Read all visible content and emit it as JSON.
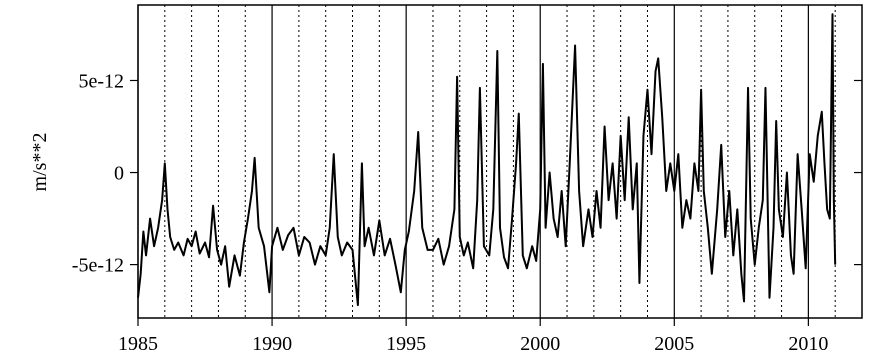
{
  "chart_data": {
    "type": "line",
    "y_label": "m/s**2",
    "color": "#000000",
    "xlim": [
      1985,
      2012
    ],
    "ylim": [
      -7.9e-12,
      9.1e-12
    ],
    "xticks": [
      1985,
      1990,
      1995,
      2000,
      2005,
      2010
    ],
    "yticks": [
      -5e-12,
      0,
      5e-12
    ],
    "x_minor_grid": [
      1986,
      1987,
      1988,
      1989,
      1991,
      1992,
      1993,
      1994,
      1996,
      1997,
      1998,
      1999,
      2001,
      2002,
      2003,
      2004,
      2006,
      2007,
      2008,
      2009,
      2011
    ],
    "grid": true,
    "x": [
      1985.0,
      1985.1,
      1985.2,
      1985.3,
      1985.45,
      1985.6,
      1985.75,
      1985.9,
      1986.0,
      1986.1,
      1986.2,
      1986.35,
      1986.5,
      1986.7,
      1986.85,
      1987.0,
      1987.15,
      1987.3,
      1987.5,
      1987.65,
      1987.8,
      1987.95,
      1988.1,
      1988.25,
      1988.4,
      1988.6,
      1988.8,
      1988.95,
      1989.1,
      1989.25,
      1989.35,
      1989.5,
      1989.7,
      1989.9,
      1990.0,
      1990.2,
      1990.4,
      1990.6,
      1990.8,
      1991.0,
      1991.2,
      1991.4,
      1991.6,
      1991.8,
      1992.0,
      1992.15,
      1992.3,
      1992.45,
      1992.6,
      1992.8,
      1993.0,
      1993.2,
      1993.35,
      1993.45,
      1993.6,
      1993.8,
      1994.0,
      1994.2,
      1994.4,
      1994.6,
      1994.8,
      1994.95,
      1995.1,
      1995.3,
      1995.45,
      1995.6,
      1995.8,
      1996.0,
      1996.2,
      1996.4,
      1996.6,
      1996.8,
      1996.9,
      1997.0,
      1997.15,
      1997.3,
      1997.5,
      1997.65,
      1997.75,
      1997.9,
      1998.1,
      1998.25,
      1998.4,
      1998.5,
      1998.65,
      1998.8,
      1998.95,
      1999.1,
      1999.2,
      1999.35,
      1999.5,
      1999.7,
      1999.85,
      2000.0,
      2000.1,
      2000.2,
      2000.35,
      2000.5,
      2000.65,
      2000.8,
      2000.95,
      2001.1,
      2001.3,
      2001.45,
      2001.6,
      2001.8,
      2001.95,
      2002.1,
      2002.25,
      2002.4,
      2002.55,
      2002.7,
      2002.85,
      2003.0,
      2003.15,
      2003.3,
      2003.45,
      2003.6,
      2003.7,
      2003.85,
      2004.0,
      2004.15,
      2004.3,
      2004.4,
      2004.55,
      2004.7,
      2004.85,
      2005.0,
      2005.15,
      2005.3,
      2005.45,
      2005.6,
      2005.75,
      2005.9,
      2006.0,
      2006.1,
      2006.25,
      2006.4,
      2006.6,
      2006.75,
      2006.9,
      2007.05,
      2007.2,
      2007.35,
      2007.5,
      2007.6,
      2007.75,
      2007.85,
      2008.0,
      2008.15,
      2008.3,
      2008.4,
      2008.55,
      2008.7,
      2008.8,
      2008.9,
      2009.05,
      2009.2,
      2009.35,
      2009.45,
      2009.6,
      2009.75,
      2009.9,
      2010.05,
      2010.2,
      2010.35,
      2010.5,
      2010.6,
      2010.7,
      2010.8,
      2010.9,
      2010.95,
      2011.0
    ],
    "values": [
      -6.8e-12,
      -5.5e-12,
      -3.2e-12,
      -4.5e-12,
      -2.5e-12,
      -4e-12,
      -3e-12,
      -1.5e-12,
      5e-13,
      -2e-12,
      -3.5e-12,
      -4.2e-12,
      -3.8e-12,
      -4.5e-12,
      -3.6e-12,
      -4e-12,
      -3.2e-12,
      -4.4e-12,
      -3.8e-12,
      -4.6e-12,
      -1.8e-12,
      -4.2e-12,
      -5e-12,
      -4e-12,
      -6.2e-12,
      -4.5e-12,
      -5.6e-12,
      -3.8e-12,
      -2.5e-12,
      -1e-12,
      8e-13,
      -3e-12,
      -4e-12,
      -6.5e-12,
      -4e-12,
      -3e-12,
      -4.2e-12,
      -3.4e-12,
      -3e-12,
      -4.5e-12,
      -3.5e-12,
      -3.8e-12,
      -5e-12,
      -4e-12,
      -4.5e-12,
      -3e-12,
      1e-12,
      -3.5e-12,
      -4.5e-12,
      -3.8e-12,
      -4.2e-12,
      -7.2e-12,
      5e-13,
      -4e-12,
      -3e-12,
      -4.5e-12,
      -2.6e-12,
      -4.5e-12,
      -3.6e-12,
      -5e-12,
      -6.5e-12,
      -4.2e-12,
      -3.2e-12,
      -1e-12,
      2.2e-12,
      -3e-12,
      -4.2e-12,
      -4.2e-12,
      -3.6e-12,
      -5e-12,
      -4e-12,
      -2e-12,
      5.2e-12,
      -3.5e-12,
      -4.5e-12,
      -3.8e-12,
      -5.2e-12,
      -1.5e-12,
      4.6e-12,
      -4e-12,
      -4.5e-12,
      -2e-12,
      6.6e-12,
      -3e-12,
      -4.6e-12,
      -5.2e-12,
      -2.5e-12,
      5e-13,
      3.2e-12,
      -4.5e-12,
      -5.2e-12,
      -4e-12,
      -4.8e-12,
      -2e-12,
      5.9e-12,
      -3e-12,
      0,
      -2.5e-12,
      -3.5e-12,
      -1e-12,
      -4e-12,
      5e-13,
      6.9e-12,
      -1e-12,
      -4e-12,
      -2e-12,
      -3.5e-12,
      -1e-12,
      -3e-12,
      2.5e-12,
      -1.5e-12,
      5e-13,
      -2.5e-12,
      2e-12,
      -1.5e-12,
      3e-12,
      -2e-12,
      5e-13,
      -6e-12,
      2e-12,
      4.5e-12,
      1e-12,
      5.5e-12,
      6.2e-12,
      3e-12,
      -1e-12,
      5e-13,
      -1e-12,
      1e-12,
      -3e-12,
      -1.5e-12,
      -2.5e-12,
      5e-13,
      -1e-12,
      4.5e-12,
      -1e-12,
      -3e-12,
      -5.5e-12,
      -2e-12,
      1.5e-12,
      -3.5e-12,
      -1e-12,
      -4.5e-12,
      -2e-12,
      -5.5e-12,
      -7e-12,
      4.6e-12,
      -2.5e-12,
      -5e-12,
      -3e-12,
      -1.5e-12,
      4.6e-12,
      -6.8e-12,
      -3e-12,
      2.8e-12,
      -2e-12,
      -3.5e-12,
      0,
      -4.5e-12,
      -5.5e-12,
      1e-12,
      -2e-12,
      -5.2e-12,
      1e-12,
      -5e-13,
      2e-12,
      3.3e-12,
      5e-13,
      -2e-12,
      -2.5e-12,
      8.6e-12,
      -1.5e-12,
      -5e-12
    ]
  }
}
